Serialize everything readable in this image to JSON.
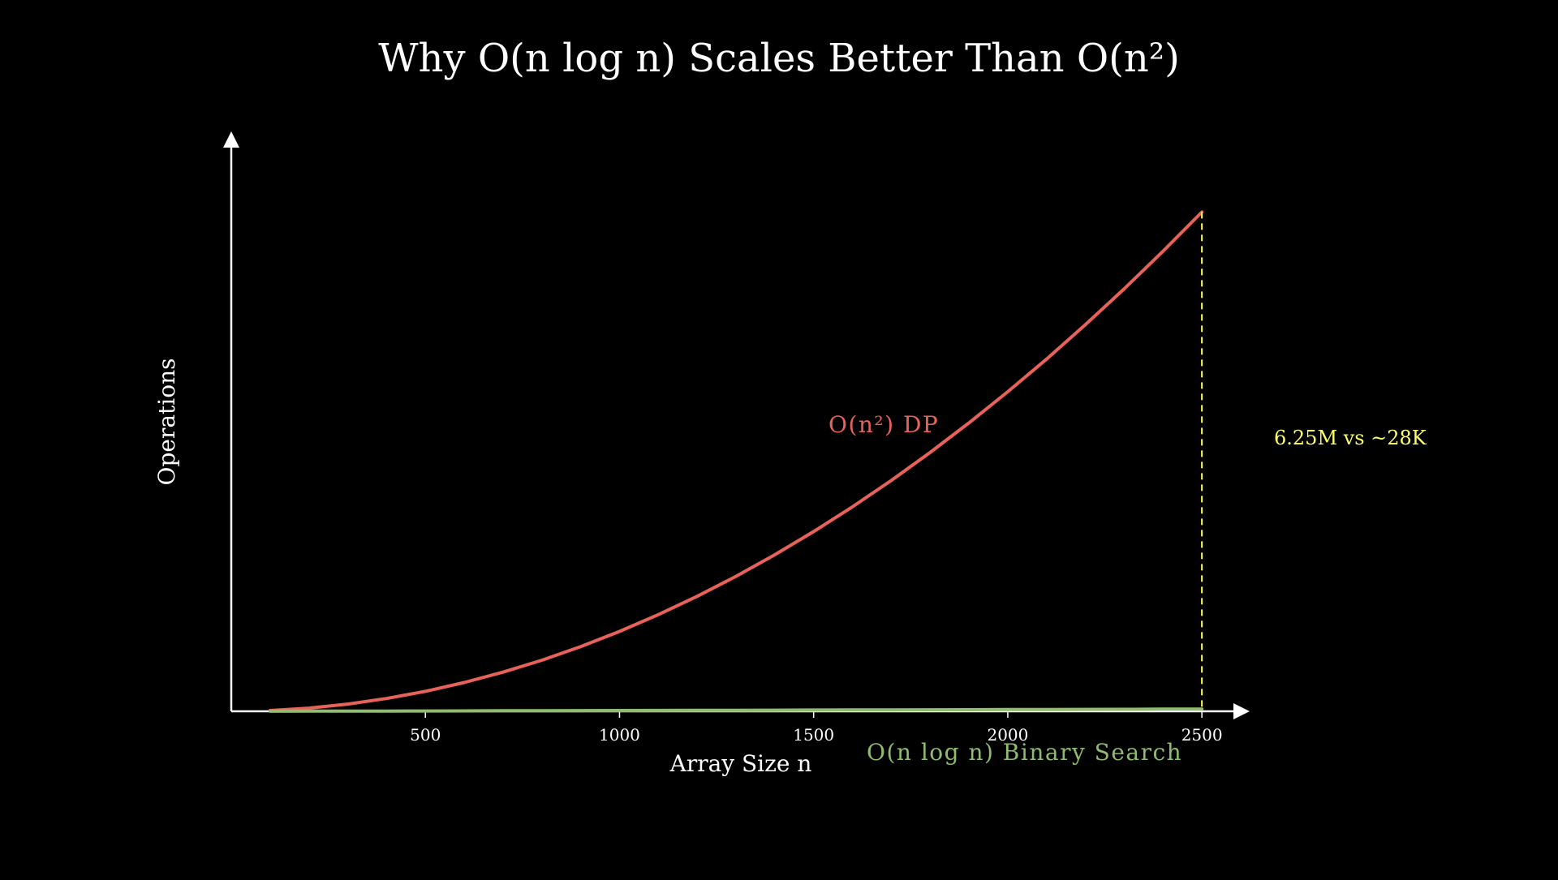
{
  "chart_data": {
    "type": "line",
    "title": "Why O(n log n) Scales Better Than O(n²)",
    "xlabel": "Array Size n",
    "ylabel": "Operations",
    "xlim": [
      0,
      2600
    ],
    "ylim": [
      0,
      7290000
    ],
    "x_ticks": [
      500,
      1000,
      1500,
      2000,
      2500
    ],
    "grid": false,
    "series": [
      {
        "name": "O(n²) DP",
        "color": "#e8625a",
        "x": [
          100,
          200,
          300,
          400,
          500,
          600,
          700,
          800,
          900,
          1000,
          1100,
          1200,
          1300,
          1400,
          1500,
          1600,
          1700,
          1800,
          1900,
          2000,
          2100,
          2200,
          2300,
          2400,
          2500
        ],
        "y": [
          10000,
          40000,
          90000,
          160000,
          250000,
          360000,
          490000,
          640000,
          810000,
          1000000,
          1210000,
          1440000,
          1690000,
          1960000,
          2250000,
          2560000,
          2890000,
          3240000,
          3610000,
          4000000,
          4410000,
          4840000,
          5290000,
          5760000,
          6250000
        ]
      },
      {
        "name": "O(n log n) Binary Search",
        "color": "#8fbc6e",
        "x": [
          100,
          200,
          300,
          400,
          500,
          600,
          700,
          800,
          900,
          1000,
          1100,
          1200,
          1300,
          1400,
          1500,
          1600,
          1700,
          1800,
          1900,
          2000,
          2100,
          2200,
          2300,
          2400,
          2500
        ],
        "y": [
          664,
          1529,
          2469,
          3458,
          4483,
          5537,
          6616,
          7715,
          8832,
          9966,
          11113,
          12274,
          13446,
          14630,
          15826,
          17032,
          18248,
          19474,
          20706,
          21932,
          23179,
          24435,
          25708,
          26978,
          28219
        ]
      }
    ],
    "annotations": [
      {
        "text": "6.25M vs ~28K",
        "x": 2500,
        "color": "#ffff66"
      }
    ],
    "axis_color": "#ffffff",
    "background": "#000000"
  }
}
